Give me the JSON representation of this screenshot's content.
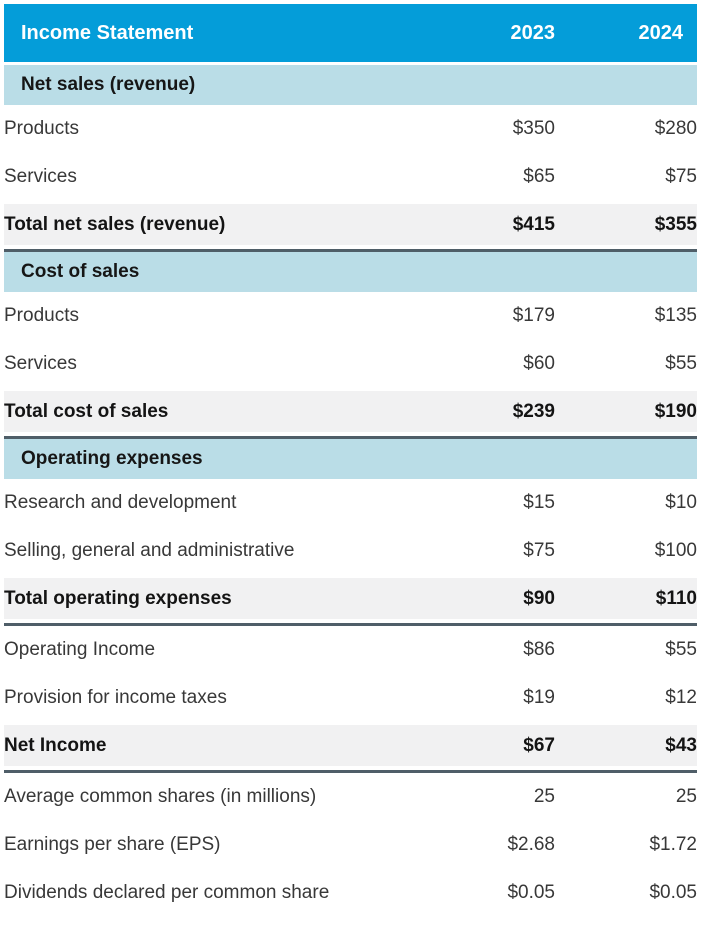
{
  "table": {
    "title": "Income Statement",
    "years": [
      "2023",
      "2024"
    ],
    "rows": [
      {
        "type": "section",
        "label": "Net sales (revenue)"
      },
      {
        "type": "data",
        "label": "Products",
        "values": [
          "$350",
          "$280"
        ]
      },
      {
        "type": "data",
        "label": "Services",
        "values": [
          "$65",
          "$75"
        ]
      },
      {
        "type": "total",
        "label": "Total net sales (revenue)",
        "values": [
          "$415",
          "$355"
        ]
      },
      {
        "type": "section",
        "label": "Cost of sales"
      },
      {
        "type": "data",
        "label": "Products",
        "values": [
          "$179",
          "$135"
        ]
      },
      {
        "type": "data",
        "label": "Services",
        "values": [
          "$60",
          "$55"
        ]
      },
      {
        "type": "total",
        "label": "Total cost of sales",
        "values": [
          "$239",
          "$190"
        ]
      },
      {
        "type": "section",
        "label": "Operating expenses"
      },
      {
        "type": "data",
        "label": "Research and development",
        "values": [
          "$15",
          "$10"
        ]
      },
      {
        "type": "data",
        "label": "Selling, general and administrative",
        "values": [
          "$75",
          "$100"
        ]
      },
      {
        "type": "total",
        "label": "Total operating expenses",
        "values": [
          "$90",
          "$110"
        ]
      },
      {
        "type": "data",
        "label": "Operating Income",
        "values": [
          "$86",
          "$55"
        ]
      },
      {
        "type": "data",
        "label": "Provision for income taxes",
        "values": [
          "$19",
          "$12"
        ]
      },
      {
        "type": "total",
        "label": "Net Income",
        "values": [
          "$67",
          "$43"
        ]
      },
      {
        "type": "data",
        "label": "Average common shares (in millions)",
        "values": [
          "25",
          "25"
        ]
      },
      {
        "type": "data",
        "label": "Earnings per share (EPS)",
        "values": [
          "$2.68",
          "$1.72"
        ]
      },
      {
        "type": "data",
        "label": "Dividends declared per common share",
        "values": [
          "$0.05",
          "$0.05"
        ]
      }
    ],
    "colors": {
      "header_bg": "#049dd9",
      "header_text": "#ffffff",
      "section_bg": "#badde7",
      "total_row_bg": "#f1f1f2",
      "divider_rule": "#4f5e68",
      "body_text": "#383838",
      "strong_text": "#141414"
    }
  }
}
